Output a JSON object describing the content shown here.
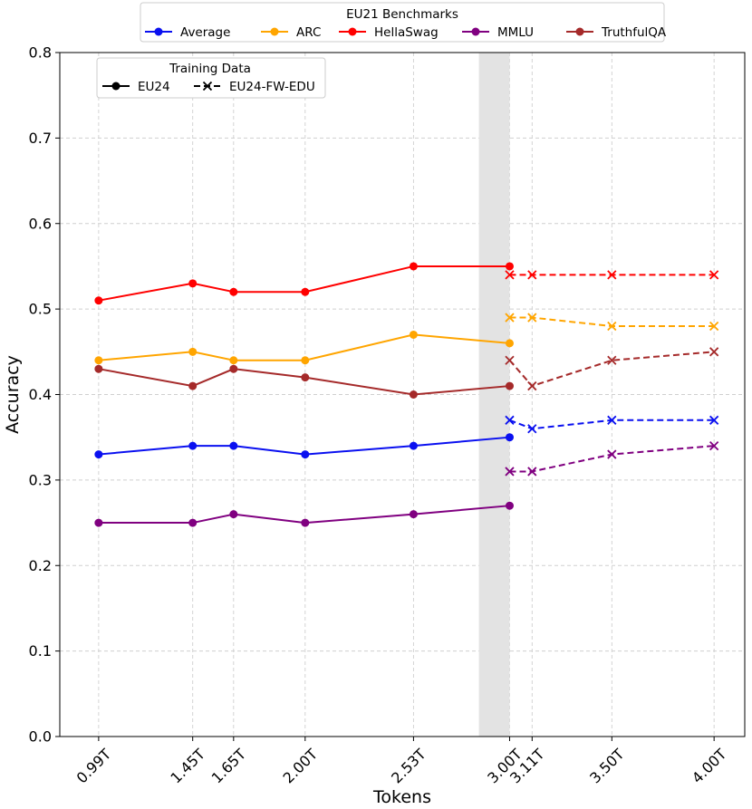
{
  "chart_data": {
    "type": "line",
    "xlabel": "Tokens",
    "ylabel": "Accuracy",
    "ylim": [
      0.0,
      0.8
    ],
    "yticks": [
      0.0,
      0.1,
      0.2,
      0.3,
      0.4,
      0.5,
      0.6,
      0.7,
      0.8
    ],
    "ytick_labels": [
      "0.0",
      "0.1",
      "0.2",
      "0.3",
      "0.4",
      "0.5",
      "0.6",
      "0.7",
      "0.8"
    ],
    "xlim": [
      0.8,
      4.15
    ],
    "xticks": [
      0.99,
      1.45,
      1.65,
      2.0,
      2.53,
      3.0,
      3.11,
      3.5,
      4.0
    ],
    "xtick_labels": [
      "0.99T",
      "1.45T",
      "1.65T",
      "2.00T",
      "2.53T",
      "3.00T",
      "3.11T",
      "3.50T",
      "4.00T"
    ],
    "grid": true,
    "shaded_region": {
      "x_start": 2.85,
      "x_end": 3.0,
      "color": "#e3e3e3"
    },
    "benchmark_legend": {
      "title": "EU21 Benchmarks",
      "placement": "top-center",
      "entries": [
        "Average",
        "ARC",
        "HellaSwag",
        "MMLU",
        "TruthfulQA"
      ]
    },
    "training_legend": {
      "title": "Training Data",
      "placement": "upper-left",
      "entries": [
        {
          "label": "EU24",
          "style": "solid-circle"
        },
        {
          "label": "EU24-FW-EDU",
          "style": "dashed-cross"
        }
      ]
    },
    "colors": {
      "Average": "#0a10f0",
      "ARC": "#ffa500",
      "HellaSwag": "#ff0000",
      "MMLU": "#800080",
      "TruthfulQA": "#a52a2a"
    },
    "series": [
      {
        "name": "Average",
        "dataset": "EU24",
        "x": [
          0.99,
          1.45,
          1.65,
          2.0,
          2.53,
          3.0
        ],
        "values": [
          0.33,
          0.34,
          0.34,
          0.33,
          0.34,
          0.35
        ]
      },
      {
        "name": "ARC",
        "dataset": "EU24",
        "x": [
          0.99,
          1.45,
          1.65,
          2.0,
          2.53,
          3.0
        ],
        "values": [
          0.44,
          0.45,
          0.44,
          0.44,
          0.47,
          0.46
        ]
      },
      {
        "name": "HellaSwag",
        "dataset": "EU24",
        "x": [
          0.99,
          1.45,
          1.65,
          2.0,
          2.53,
          3.0
        ],
        "values": [
          0.51,
          0.53,
          0.52,
          0.52,
          0.55,
          0.55
        ]
      },
      {
        "name": "MMLU",
        "dataset": "EU24",
        "x": [
          0.99,
          1.45,
          1.65,
          2.0,
          2.53,
          3.0
        ],
        "values": [
          0.25,
          0.25,
          0.26,
          0.25,
          0.26,
          0.27
        ]
      },
      {
        "name": "TruthfulQA",
        "dataset": "EU24",
        "x": [
          0.99,
          1.45,
          1.65,
          2.0,
          2.53,
          3.0
        ],
        "values": [
          0.43,
          0.41,
          0.43,
          0.42,
          0.4,
          0.41
        ]
      },
      {
        "name": "Average",
        "dataset": "EU24-FW-EDU",
        "x": [
          3.0,
          3.11,
          3.5,
          4.0
        ],
        "values": [
          0.37,
          0.36,
          0.37,
          0.37
        ]
      },
      {
        "name": "ARC",
        "dataset": "EU24-FW-EDU",
        "x": [
          3.0,
          3.11,
          3.5,
          4.0
        ],
        "values": [
          0.49,
          0.49,
          0.48,
          0.48
        ]
      },
      {
        "name": "HellaSwag",
        "dataset": "EU24-FW-EDU",
        "x": [
          3.0,
          3.11,
          3.5,
          4.0
        ],
        "values": [
          0.54,
          0.54,
          0.54,
          0.54
        ]
      },
      {
        "name": "MMLU",
        "dataset": "EU24-FW-EDU",
        "x": [
          3.0,
          3.11,
          3.5,
          4.0
        ],
        "values": [
          0.31,
          0.31,
          0.33,
          0.34
        ]
      },
      {
        "name": "TruthfulQA",
        "dataset": "EU24-FW-EDU",
        "x": [
          3.0,
          3.11,
          3.5,
          4.0
        ],
        "values": [
          0.44,
          0.41,
          0.44,
          0.45
        ]
      }
    ]
  }
}
